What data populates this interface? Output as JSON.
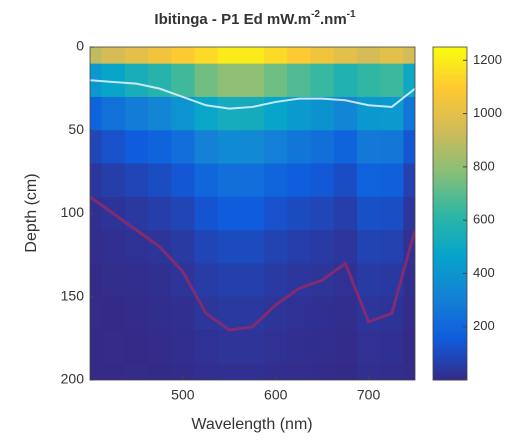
{
  "chart_data": {
    "type": "heatmap",
    "title_parts": [
      "Ibitinga - P1 Ed mW.m",
      "-2",
      ".nm",
      "-1"
    ],
    "x_label": "Wavelength  (nm)",
    "y_label": "Depth  (cm)",
    "x": [
      400,
      425,
      450,
      475,
      500,
      525,
      550,
      575,
      600,
      625,
      650,
      675,
      700,
      725,
      750
    ],
    "y": [
      0,
      20,
      40,
      60,
      80,
      100,
      120,
      140,
      160,
      180,
      200
    ],
    "z": [
      [
        900,
        950,
        1000,
        1050,
        1100,
        1150,
        1200,
        1200,
        1150,
        1100,
        1050,
        1000,
        950,
        1000,
        950
      ],
      [
        415,
        478,
        540,
        594,
        657,
        745,
        798,
        797,
        738,
        683,
        640,
        576,
        627,
        647,
        502
      ],
      [
        191,
        241,
        292,
        336,
        392,
        483,
        531,
        529,
        473,
        424,
        390,
        332,
        413,
        418,
        265
      ],
      [
        88,
        121,
        157,
        190,
        234,
        313,
        353,
        351,
        303,
        264,
        237,
        191,
        273,
        270,
        140
      ],
      [
        41,
        61,
        85,
        108,
        140,
        203,
        235,
        233,
        194,
        164,
        145,
        110,
        180,
        175,
        74
      ],
      [
        19,
        31,
        46,
        61,
        83,
        132,
        156,
        155,
        125,
        102,
        88,
        63,
        119,
        113,
        39
      ],
      [
        9,
        15,
        25,
        34,
        50,
        85,
        104,
        103,
        80,
        63,
        54,
        36,
        78,
        73,
        21
      ],
      [
        4,
        8,
        13,
        19,
        30,
        55,
        69,
        68,
        51,
        39,
        33,
        21,
        52,
        47,
        11
      ],
      [
        2,
        4,
        7,
        11,
        18,
        36,
        46,
        45,
        33,
        24,
        20,
        12,
        34,
        31,
        6
      ],
      [
        1,
        2,
        4,
        6,
        11,
        23,
        30,
        30,
        21,
        15,
        12,
        7,
        22,
        20,
        3
      ],
      [
        0,
        1,
        2,
        3,
        6,
        15,
        20,
        20,
        14,
        9,
        7,
        4,
        15,
        13,
        2
      ]
    ],
    "contours": [
      {
        "color": "#d8f0ff",
        "values": [
          20,
          21,
          22,
          25,
          30,
          35,
          37,
          36,
          33,
          31,
          31,
          32,
          35,
          36,
          25
        ]
      },
      {
        "color": "#8b2a6b",
        "values": [
          90,
          100,
          110,
          120,
          135,
          160,
          170,
          168,
          155,
          145,
          140,
          130,
          165,
          160,
          110
        ]
      }
    ],
    "xlim": [
      400,
      750
    ],
    "xticks": [
      500,
      600,
      700
    ],
    "ylim": [
      200,
      0
    ],
    "yticks": [
      0,
      50,
      100,
      150,
      200
    ],
    "colormap": "parula",
    "zlim": [
      0,
      1250
    ],
    "zticks": [
      200,
      400,
      600,
      800,
      1000,
      1200
    ]
  }
}
